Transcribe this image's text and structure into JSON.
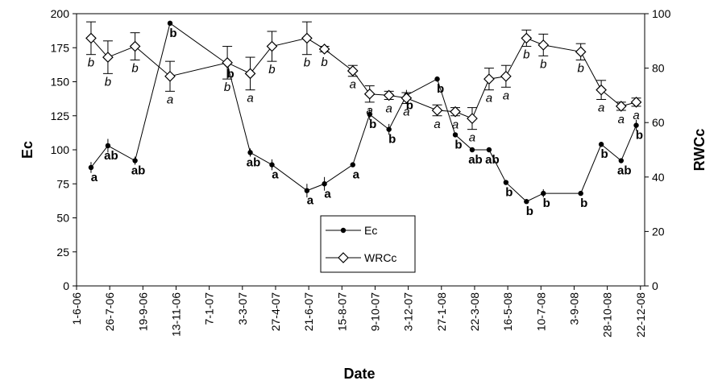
{
  "chart_data": {
    "type": "line",
    "x_label": "Date",
    "y_label": "Ec",
    "y2_label": "RWCc",
    "x": [
      "2006-06-25",
      "2006-07-23",
      "2006-09-06",
      "2006-11-03",
      "2007-02-06",
      "2007-03-16",
      "2007-04-21",
      "2007-06-18",
      "2007-07-17",
      "2007-09-02",
      "2007-09-30",
      "2007-11-01",
      "2007-11-30",
      "2008-01-20",
      "2008-02-19",
      "2008-03-18",
      "2008-04-15",
      "2008-05-13",
      "2008-06-16",
      "2008-07-14",
      "2008-09-14",
      "2008-10-18",
      "2008-11-20",
      "2008-12-15"
    ],
    "series": [
      {
        "name": "Ec",
        "color": "#000000",
        "marker": "circle",
        "values": [
          87,
          103,
          92,
          193,
          163,
          98,
          89,
          70,
          75,
          89,
          126,
          115,
          140,
          152,
          111,
          100,
          100,
          76,
          62,
          68,
          68,
          104,
          92,
          118
        ],
        "errors": [
          4,
          5,
          3,
          0,
          0,
          3,
          4,
          5,
          5,
          0,
          4,
          4,
          4,
          0,
          0,
          0,
          0,
          0,
          0,
          3,
          0,
          0,
          0,
          4
        ],
        "labels": [
          "a",
          "ab",
          "ab",
          "b",
          "b",
          "ab",
          "a",
          "a",
          "a",
          "a",
          "b",
          "b",
          "b",
          "b",
          "b",
          "ab",
          "ab",
          "b",
          "b",
          "b",
          "b",
          "b",
          "ab",
          "b"
        ]
      },
      {
        "name": "WRCc",
        "color": "#000000",
        "marker": "diamond",
        "axis": "y2",
        "values": [
          91,
          84,
          88,
          77,
          82,
          78,
          88,
          91,
          87,
          79,
          70.5,
          70,
          69,
          64.5,
          64,
          61.5,
          76,
          77,
          91,
          88.5,
          86,
          72,
          66,
          67.5
        ],
        "errors": [
          6,
          6,
          5,
          5.5,
          6,
          6,
          5.5,
          6,
          1,
          2,
          3,
          1.5,
          2,
          2,
          1.5,
          4,
          4,
          4,
          3,
          4,
          3,
          3.5,
          1.5,
          1.5
        ],
        "labels": [
          "b",
          "b",
          "b",
          "a",
          "b",
          "a",
          "b",
          "b",
          "b",
          "a",
          "a",
          "a",
          "a",
          "a",
          "a",
          "a",
          "a",
          "a",
          "b",
          "b",
          "b",
          "a",
          "a",
          "a"
        ]
      }
    ],
    "xlim": [
      "2006-06-01",
      "2008-12-29"
    ],
    "xticks": [
      {
        "value": "2006-06-01",
        "label": "1-6-06"
      },
      {
        "value": "2006-07-26",
        "label": "26-7-06"
      },
      {
        "value": "2006-09-19",
        "label": "19-9-06"
      },
      {
        "value": "2006-11-13",
        "label": "13-11-06"
      },
      {
        "value": "2007-01-07",
        "label": "7-1-07"
      },
      {
        "value": "2007-03-03",
        "label": "3-3-07"
      },
      {
        "value": "2007-04-27",
        "label": "27-4-07"
      },
      {
        "value": "2007-06-21",
        "label": "21-6-07"
      },
      {
        "value": "2007-08-15",
        "label": "15-8-07"
      },
      {
        "value": "2007-10-09",
        "label": "9-10-07"
      },
      {
        "value": "2007-12-03",
        "label": "3-12-07"
      },
      {
        "value": "2008-01-27",
        "label": "27-1-08"
      },
      {
        "value": "2008-03-22",
        "label": "22-3-08"
      },
      {
        "value": "2008-05-16",
        "label": "16-5-08"
      },
      {
        "value": "2008-07-10",
        "label": "10-7-08"
      },
      {
        "value": "2008-09-03",
        "label": "3-9-08"
      },
      {
        "value": "2008-10-28",
        "label": "28-10-08"
      },
      {
        "value": "2008-12-22",
        "label": "22-12-08"
      }
    ],
    "ylim": [
      0,
      200
    ],
    "yticks": [
      0,
      25,
      50,
      75,
      100,
      125,
      150,
      175,
      200
    ],
    "y2lim": [
      0,
      100
    ],
    "y2ticks": [
      0,
      20,
      40,
      60,
      80,
      100
    ],
    "legend": "center"
  }
}
